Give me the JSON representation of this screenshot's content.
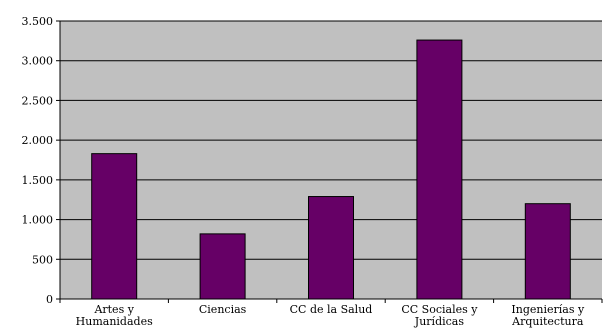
{
  "chart_data": {
    "type": "bar",
    "title": "",
    "xlabel": "",
    "ylabel": "",
    "categories": [
      [
        "Artes y",
        "Humanidades"
      ],
      [
        "Ciencias"
      ],
      [
        "CC de la Salud"
      ],
      [
        "CC Sociales y",
        "Jurídicas"
      ],
      [
        "Ingenierías y",
        "Arquitectura"
      ]
    ],
    "values": [
      1830,
      820,
      1290,
      3260,
      1200
    ],
    "ylim": [
      0,
      3500
    ],
    "yticks": [
      0,
      500,
      1000,
      1500,
      2000,
      2500,
      3000,
      3500
    ],
    "ytick_labels": [
      "0",
      "500",
      "1.000",
      "1.500",
      "2.000",
      "2.500",
      "3.000",
      "3.500"
    ],
    "grid": true,
    "legend": "none",
    "colors": {
      "bar_fill": "#660066",
      "bar_stroke": "#000000",
      "plot_background": "#c0c0c0",
      "gridline": "#000000",
      "axis": "#000000"
    }
  }
}
